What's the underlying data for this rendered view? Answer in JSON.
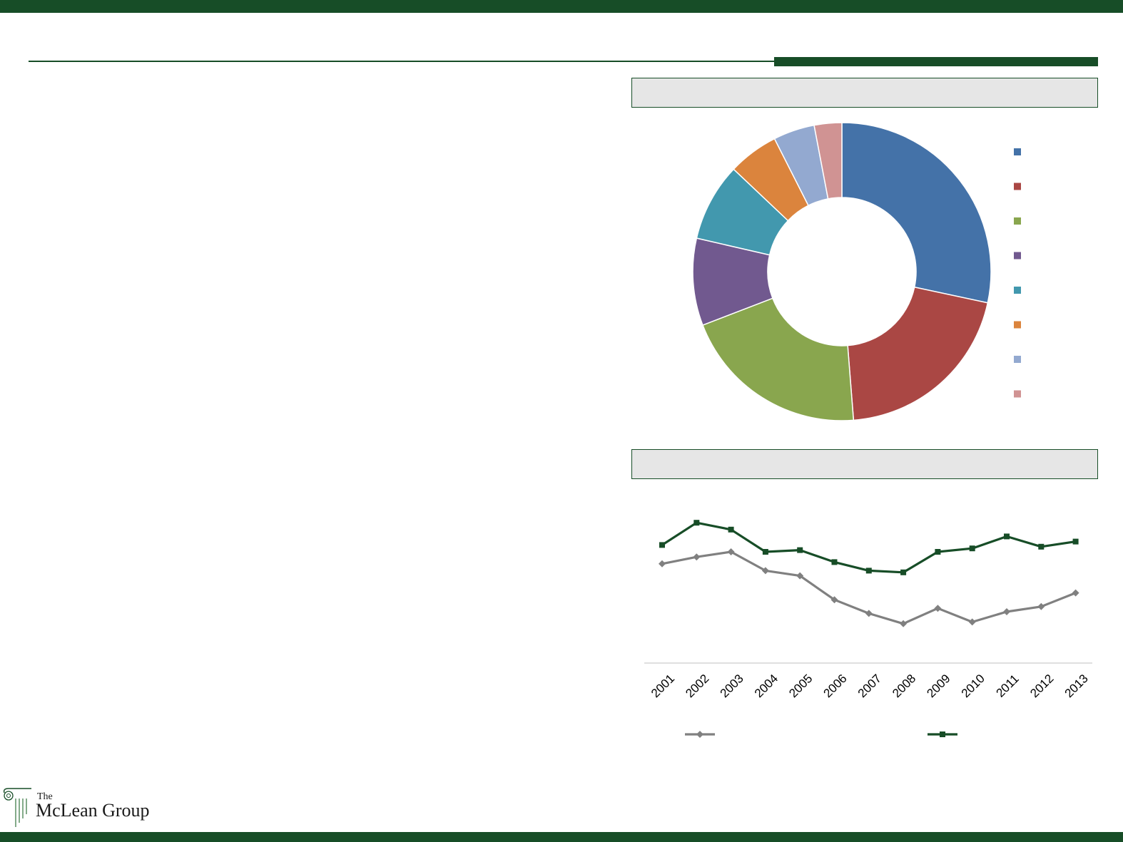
{
  "logo": {
    "the": "The",
    "name": "McLean Group"
  },
  "chart_data": [
    {
      "type": "pie",
      "title": "",
      "donut": true,
      "categories": [
        "",
        "",
        "",
        "",
        "",
        "",
        "",
        ""
      ],
      "values": [
        28.5,
        20.5,
        20.5,
        9.5,
        8.5,
        5.5,
        4.5,
        3.0
      ],
      "colors": [
        "#4472a8",
        "#aa4744",
        "#89a64e",
        "#71598f",
        "#4298ae",
        "#db843d",
        "#93a9d0",
        "#d09393"
      ],
      "legend_position": "right"
    },
    {
      "type": "line",
      "title": "",
      "x": [
        "2001",
        "2002",
        "2003",
        "2004",
        "2005",
        "2006",
        "2007",
        "2008",
        "2009",
        "2010",
        "2011",
        "2012",
        "2013"
      ],
      "series": [
        {
          "name": "",
          "color": "#808080",
          "marker": "diamond",
          "values": [
            58,
            62,
            65,
            54,
            51,
            37,
            29,
            23,
            32,
            24,
            30,
            33,
            41
          ]
        },
        {
          "name": "",
          "color": "#174d27",
          "marker": "square",
          "values": [
            69,
            82,
            78,
            65,
            66,
            59,
            54,
            53,
            65,
            67,
            74,
            68,
            71
          ]
        }
      ],
      "ylim": [
        0,
        100
      ],
      "grid": false,
      "legend_position": "bottom"
    }
  ]
}
